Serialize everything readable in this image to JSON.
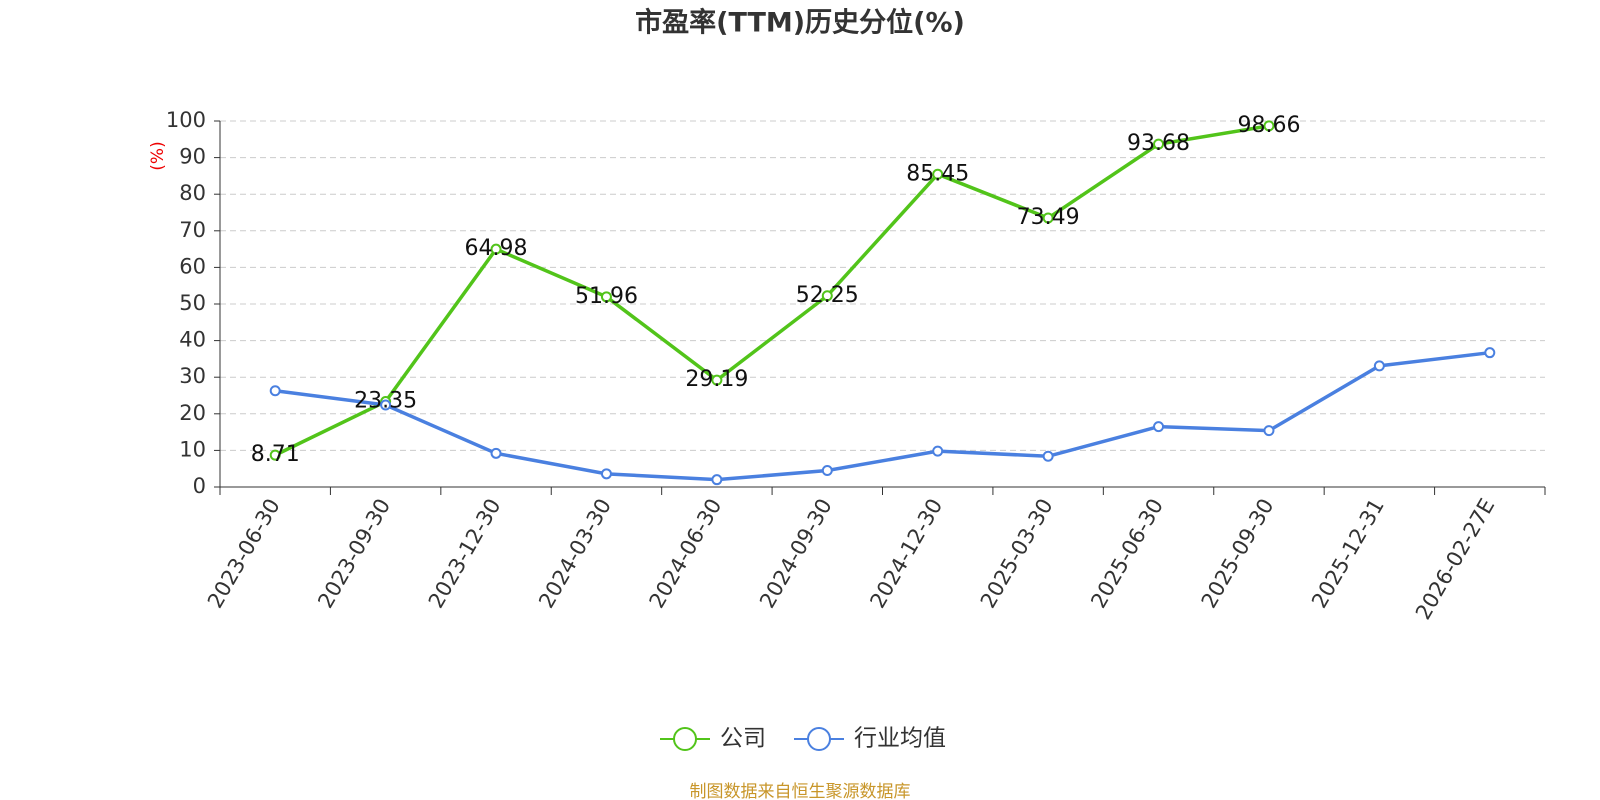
{
  "chart_data": {
    "type": "line",
    "title": "市盈率(TTM)历史分位(%)",
    "y_label": "(%)",
    "categories": [
      "2023-06-30",
      "2023-09-30",
      "2023-12-30",
      "2024-03-30",
      "2024-06-30",
      "2024-09-30",
      "2024-12-30",
      "2025-03-30",
      "2025-06-30",
      "2025-09-30",
      "2025-12-31",
      "2026-02-27E"
    ],
    "series": [
      {
        "name": "公司",
        "color": "#52c41a",
        "values": [
          8.71,
          23.35,
          64.98,
          51.96,
          29.19,
          52.25,
          85.45,
          73.49,
          93.68,
          98.66,
          null,
          null
        ]
      },
      {
        "name": "行业均值",
        "color": "#4a80e0",
        "values": [
          26.3,
          22.4,
          9.2,
          3.6,
          2.0,
          4.5,
          9.8,
          8.4,
          16.5,
          15.4,
          33.1,
          36.7
        ]
      }
    ],
    "ylim": [
      0,
      100
    ],
    "yticks": [
      0,
      10,
      20,
      30,
      40,
      50,
      60,
      70,
      80,
      90,
      100
    ],
    "grid": true,
    "legend": "bottom",
    "source": "制图数据来自恒生聚源数据库"
  }
}
